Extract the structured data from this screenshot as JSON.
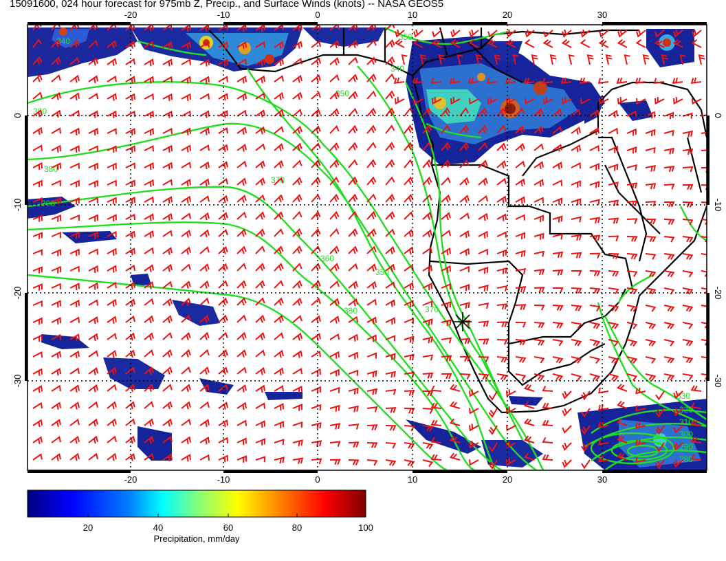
{
  "title": "15091600, 024 hour forecast for 975mb Z, Precip., and Surface Winds (knots) -- NASA GEOS5",
  "map": {
    "region": "South Atlantic and southern Africa",
    "lon_range": [
      -30,
      40
    ],
    "lat_range": [
      -40,
      10
    ],
    "lon_ticks": [
      "-20",
      "-10",
      "0",
      "10",
      "20",
      "30"
    ],
    "lat_ticks": [
      "0",
      "-10",
      "-20",
      "-30"
    ],
    "gridlines": true,
    "gridline_style": "dotted",
    "marker": {
      "symbol": "asterisk",
      "lon": 15,
      "lat": -24
    },
    "colors": {
      "geopotential_contours": "#22dd22",
      "wind_barbs": "#ee1111",
      "coastline": "#000000",
      "background": "#ffffff"
    },
    "contour_labels": [
      "340",
      "350",
      "360",
      "370",
      "380",
      "390",
      "350",
      "360",
      "370",
      "380",
      "350",
      "340",
      "330",
      "320",
      "310",
      "300",
      "290",
      "280"
    ]
  },
  "colorbar": {
    "label": "Precipitation, mm/day",
    "ticks": [
      "20",
      "40",
      "60",
      "80",
      "100"
    ],
    "range": [
      0,
      100
    ],
    "colors": [
      "#00007f",
      "#0000ff",
      "#007fff",
      "#00ffff",
      "#7fff7f",
      "#ffff00",
      "#ff7f00",
      "#ff0000",
      "#7f0000"
    ]
  }
}
